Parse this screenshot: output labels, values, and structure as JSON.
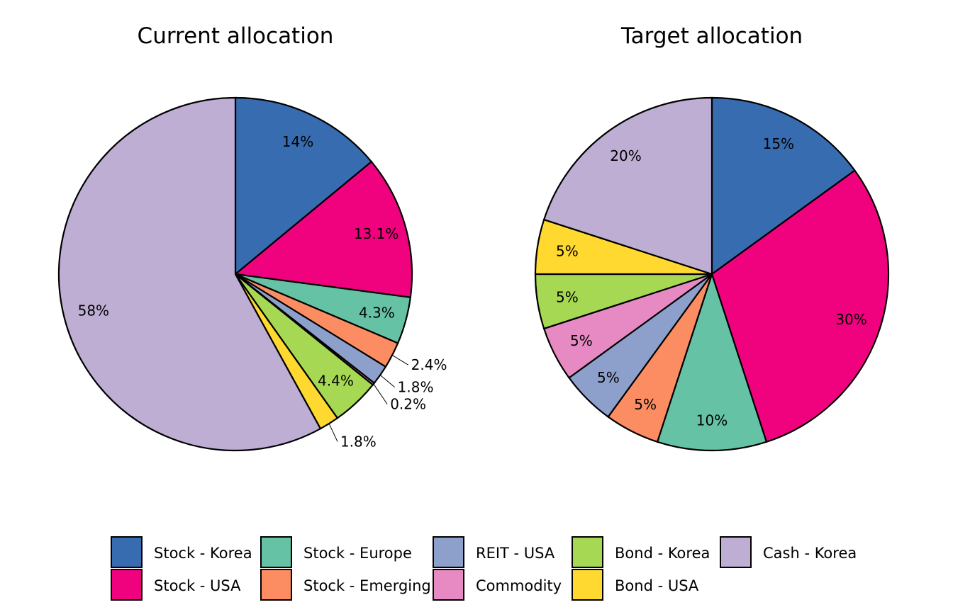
{
  "chart_data": [
    {
      "type": "pie",
      "title": "Current allocation",
      "categories": [
        "Stock - Korea",
        "Stock - USA",
        "Stock - Europe",
        "Stock - Emerging",
        "REIT - USA",
        "Commodity",
        "Bond - Korea",
        "Bond - USA",
        "Cash - Korea"
      ],
      "values": [
        14,
        13.1,
        4.3,
        2.4,
        1.8,
        0.2,
        4.4,
        1.8,
        58
      ],
      "labels": [
        "14%",
        "13.1%",
        "4.3%",
        "2.4%",
        "1.8%",
        "0.2%",
        "4.4%",
        "1.8%",
        "58%"
      ]
    },
    {
      "type": "pie",
      "title": "Target allocation",
      "categories": [
        "Stock - Korea",
        "Stock - USA",
        "Stock - Europe",
        "Stock - Emerging",
        "REIT - USA",
        "Commodity",
        "Bond - Korea",
        "Bond - USA",
        "Cash - Korea"
      ],
      "values": [
        15,
        30,
        10,
        5,
        5,
        5,
        5,
        5,
        20
      ],
      "labels": [
        "15%",
        "30%",
        "10%",
        "5%",
        "5%",
        "5%",
        "5%",
        "5%",
        "20%"
      ]
    }
  ],
  "colors": {
    "Stock - Korea": "#386cb0",
    "Stock - USA": "#f0027f",
    "Stock - Europe": "#66c2a5",
    "Stock - Emerging": "#fc8d62",
    "REIT - USA": "#8da0cb",
    "Commodity": "#e78ac3",
    "Bond - Korea": "#a6d854",
    "Bond - USA": "#ffd92f",
    "Cash - Korea": "#beaed4"
  },
  "legend": {
    "placement": "bottom",
    "items": [
      "Stock - Korea",
      "Stock - USA",
      "Stock - Europe",
      "Stock - Emerging",
      "REIT - USA",
      "Commodity",
      "Bond - Korea",
      "Bond - USA",
      "Cash - Korea"
    ]
  }
}
